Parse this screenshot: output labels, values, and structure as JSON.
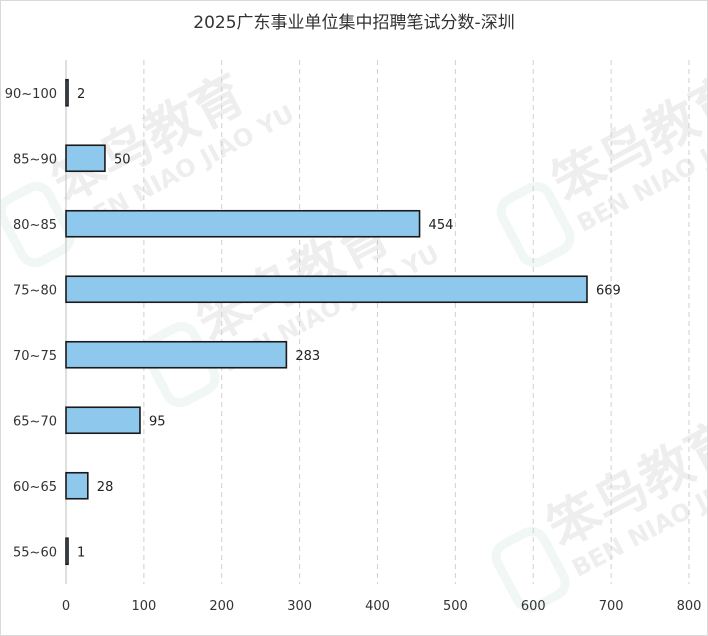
{
  "chart_data": {
    "type": "bar",
    "orientation": "horizontal",
    "title": "2025广东事业单位集中招聘笔试分数-深圳",
    "categories": [
      "90~100",
      "85~90",
      "80~85",
      "75~80",
      "70~75",
      "65~70",
      "60~65",
      "55~60"
    ],
    "values": [
      2,
      50,
      454,
      669,
      283,
      95,
      28,
      1
    ],
    "xlim": [
      0,
      800
    ],
    "x_ticks": [
      0,
      100,
      200,
      300,
      400,
      500,
      600,
      700,
      800
    ],
    "xlabel": "",
    "ylabel": "",
    "grid": "vertical dashed",
    "bar_color": "#8ec8ec",
    "bar_edge_color": "#1a1a1a"
  },
  "watermark": {
    "brand_cn": "笨鸟教育",
    "brand_en": "BEN NIAO JIAO YU",
    "color": "#2e8b57"
  }
}
